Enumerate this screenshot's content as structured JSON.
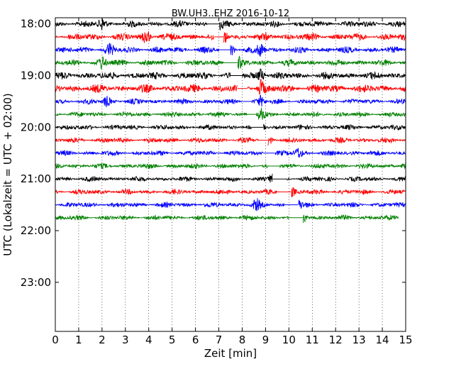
{
  "chart_data": {
    "type": "line",
    "title": "BW.UH3..EHZ 2016-10-12",
    "xlabel": "Zeit  [min]",
    "ylabel": "UTC (Lokalzeit = UTC + 02:00)",
    "xlim": [
      0,
      15
    ],
    "x_ticks": [
      "0",
      "1",
      "2",
      "3",
      "4",
      "5",
      "6",
      "7",
      "8",
      "9",
      "10",
      "11",
      "12",
      "13",
      "14",
      "15"
    ],
    "y_ticks": [
      {
        "label": "18:00",
        "hour_offset": 0
      },
      {
        "label": "19:00",
        "hour_offset": 1
      },
      {
        "label": "20:00",
        "hour_offset": 2
      },
      {
        "label": "21:00",
        "hour_offset": 3
      },
      {
        "label": "22:00",
        "hour_offset": 4
      },
      {
        "label": "23:00",
        "hour_offset": 5
      }
    ],
    "ylim_hours": [
      -0.12,
      5.95
    ],
    "grid": "vertical dotted",
    "row_minutes": 15,
    "colors": [
      "#000000",
      "#ff0000",
      "#0000ff",
      "#008000"
    ],
    "traces": [
      {
        "start_min": 0,
        "end_min": 15,
        "amplitude": 0.6,
        "gap": [
          6.5,
          7.0
        ],
        "events": [
          2.0,
          7.0
        ]
      },
      {
        "start_min": 0,
        "end_min": 15,
        "amplitude": 0.7,
        "gap": [
          6.8,
          7.2
        ],
        "events": [
          3.9,
          7.2
        ]
      },
      {
        "start_min": 0,
        "end_min": 15,
        "amplitude": 0.6,
        "gap": [
          7.0,
          7.5
        ],
        "events": [
          2.3,
          7.5,
          8.8
        ]
      },
      {
        "start_min": 0,
        "end_min": 15,
        "amplitude": 0.6,
        "gap": [
          7.2,
          7.8
        ],
        "events": [
          2.0,
          7.8
        ]
      },
      {
        "start_min": 0,
        "end_min": 15,
        "amplitude": 0.7,
        "gap": [
          7.5,
          8.0
        ],
        "events": [
          8.8
        ]
      },
      {
        "start_min": 0,
        "end_min": 15,
        "amplitude": 0.8,
        "gap": [
          7.8,
          8.2
        ],
        "events": [
          8.8
        ]
      },
      {
        "start_min": 0,
        "end_min": 15,
        "amplitude": 0.5,
        "gap": [
          8.0,
          8.4
        ],
        "events": [
          2.2,
          8.8
        ]
      },
      {
        "start_min": 0,
        "end_min": 15,
        "amplitude": 0.5,
        "gap": [
          8.2,
          8.6
        ],
        "events": [
          8.8
        ]
      },
      {
        "start_min": 0,
        "end_min": 15,
        "amplitude": 0.5,
        "gap": [
          8.4,
          8.9
        ],
        "events": [
          8.8
        ]
      },
      {
        "start_min": 0,
        "end_min": 15,
        "amplitude": 0.5,
        "gap": [
          8.7,
          9.1
        ],
        "events": [
          9.1
        ]
      },
      {
        "start_min": 0,
        "end_min": 15,
        "amplitude": 0.5,
        "gap": [
          8.9,
          9.4
        ],
        "events": [
          10.4
        ]
      },
      {
        "start_min": 0,
        "end_min": 15,
        "amplitude": 0.5,
        "gap": [
          9.1,
          9.6
        ],
        "events": [
          15.0
        ]
      },
      {
        "start_min": 0,
        "end_min": 15,
        "amplitude": 0.5,
        "gap": [
          9.3,
          9.9
        ],
        "events": [
          9.3
        ]
      },
      {
        "start_min": 0,
        "end_min": 15,
        "amplitude": 0.5,
        "gap": [
          9.5,
          10.1
        ],
        "events": [
          10.1
        ]
      },
      {
        "start_min": 0,
        "end_min": 15,
        "amplitude": 0.5,
        "gap": [
          9.8,
          10.4
        ],
        "events": [
          8.6,
          10.4
        ]
      },
      {
        "start_min": 0,
        "end_min": 14.7,
        "amplitude": 0.5,
        "gap": [
          10.0,
          10.6
        ],
        "events": [
          10.6
        ]
      }
    ]
  }
}
